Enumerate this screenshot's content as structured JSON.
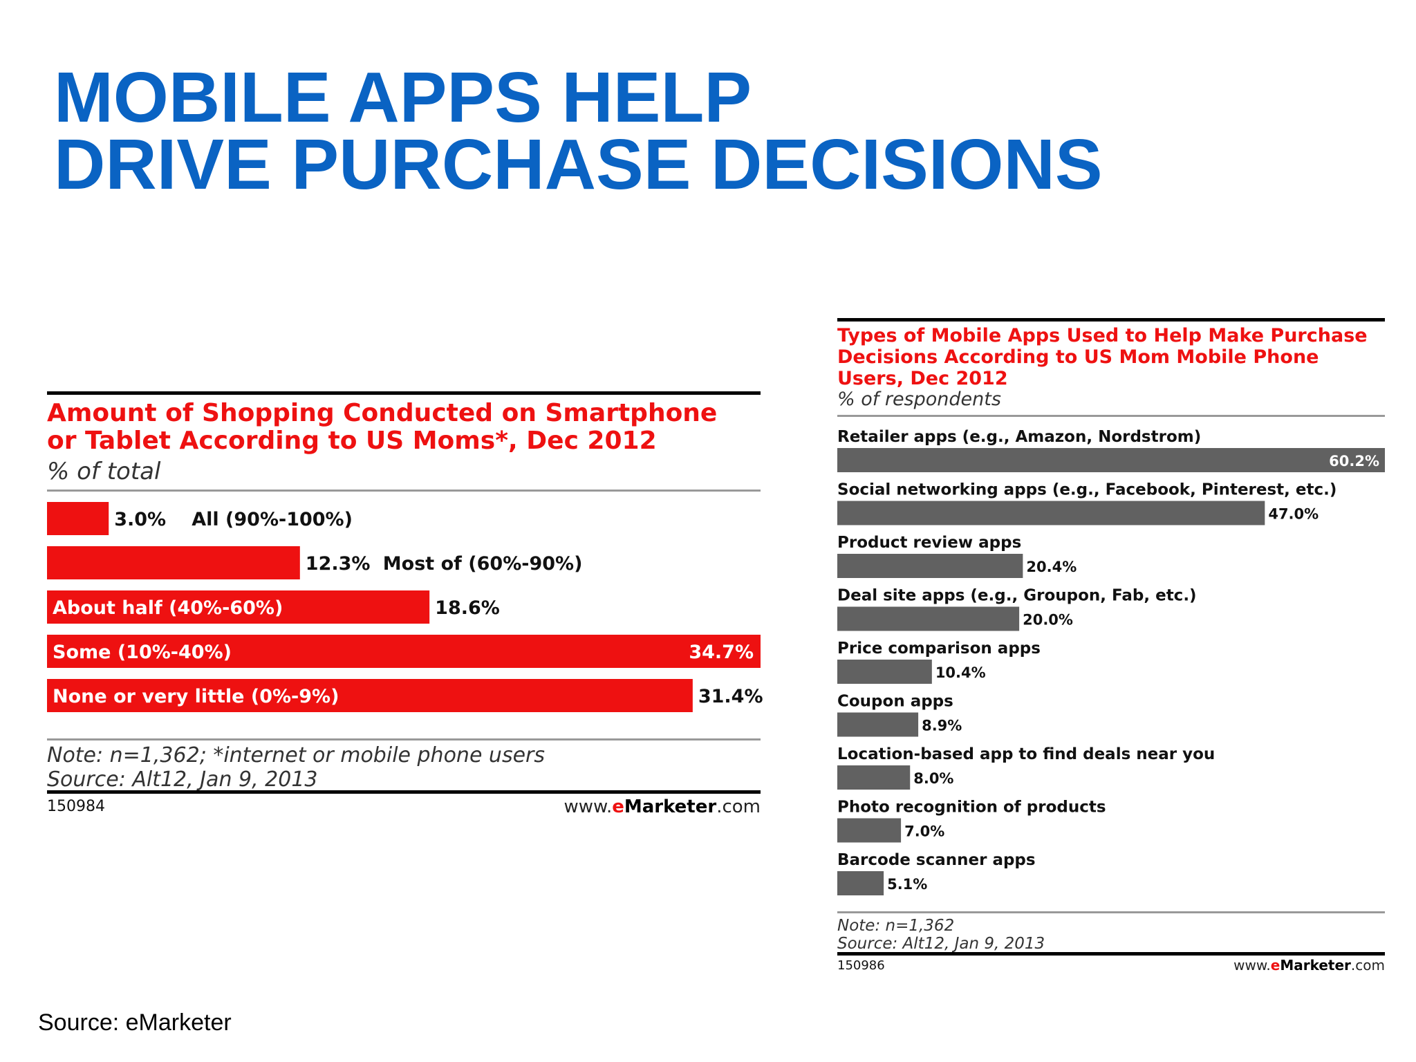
{
  "slide": {
    "title_line1": "MOBILE APPS HELP",
    "title_line2": "DRIVE PURCHASE DECISIONS",
    "source": "Source: eMarketer"
  },
  "left_chart_meta": {
    "title": "Amount of Shopping Conducted on Smartphone or Tablet According to US Moms*, Dec 2012",
    "subtitle": "% of total",
    "note": "Note: n=1,362; *internet or mobile phone users",
    "source": "Source: Alt12, Jan 9, 2013",
    "id": "150984",
    "brand_prefix": "www.",
    "brand_e": "e",
    "brand_name": "Marketer",
    "brand_suffix": ".com"
  },
  "right_chart_meta": {
    "title": "Types of Mobile Apps Used to Help Make Purchase Decisions According to US Mom Mobile Phone Users, Dec 2012",
    "subtitle": "% of respondents",
    "note": "Note: n=1,362",
    "source": "Source: Alt12, Jan 9, 2013",
    "id": "150986",
    "brand_prefix": "www.",
    "brand_e": "e",
    "brand_name": "Marketer",
    "brand_suffix": ".com"
  },
  "chart_data": [
    {
      "type": "bar",
      "orientation": "horizontal",
      "title": "Amount of Shopping Conducted on Smartphone or Tablet According to US Moms*, Dec 2012",
      "subtitle": "% of total",
      "categories": [
        "All (90%-100%)",
        "Most of (60%-90%)",
        "About half (40%-60%)",
        "Some (10%-40%)",
        "None or very little (0%-9%)"
      ],
      "values": [
        3.0,
        12.3,
        18.6,
        34.7,
        31.4
      ],
      "value_labels": [
        "3.0%",
        "12.3%",
        "18.6%",
        "34.7%",
        "31.4%"
      ],
      "xlim": [
        0,
        34.7
      ],
      "bar_color": "#ee1111",
      "grid": false,
      "legend": "none"
    },
    {
      "type": "bar",
      "orientation": "horizontal",
      "title": "Types of Mobile Apps Used to Help Make Purchase Decisions According to US Mom Mobile Phone Users, Dec 2012",
      "subtitle": "% of respondents",
      "categories": [
        "Retailer apps (e.g., Amazon, Nordstrom)",
        "Social networking apps (e.g., Facebook, Pinterest, etc.)",
        "Product review apps",
        "Deal site apps (e.g., Groupon, Fab, etc.)",
        "Price comparison apps",
        "Coupon apps",
        "Location-based app to find deals near you",
        "Photo recognition of products",
        "Barcode scanner apps"
      ],
      "values": [
        60.2,
        47.0,
        20.4,
        20.0,
        10.4,
        8.9,
        8.0,
        7.0,
        5.1
      ],
      "value_labels": [
        "60.2%",
        "47.0%",
        "20.4%",
        "20.0%",
        "10.4%",
        "8.9%",
        "8.0%",
        "7.0%",
        "5.1%"
      ],
      "xlim": [
        0,
        60.2
      ],
      "bar_color": "#616161",
      "grid": false,
      "legend": "none"
    }
  ]
}
